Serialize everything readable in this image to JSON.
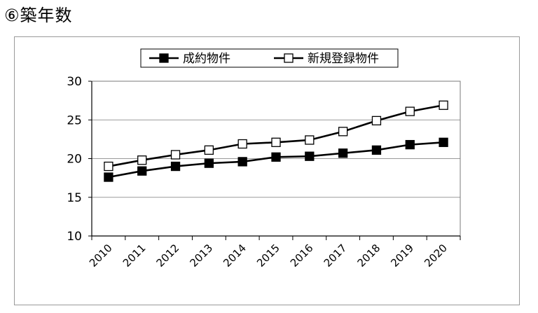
{
  "heading": "⑥築年数",
  "chart_data": {
    "type": "line",
    "x": [
      "2010",
      "2011",
      "2012",
      "2013",
      "2014",
      "2015",
      "2016",
      "2017",
      "2018",
      "2019",
      "2020"
    ],
    "series": [
      {
        "name": "成約物件",
        "marker": "filled-square",
        "color": "#000000",
        "values": [
          17.6,
          18.4,
          19.0,
          19.4,
          19.6,
          20.2,
          20.3,
          20.7,
          21.1,
          21.8,
          22.1
        ]
      },
      {
        "name": "新規登録物件",
        "marker": "open-square",
        "color": "#000000",
        "values": [
          19.0,
          19.8,
          20.5,
          21.1,
          21.9,
          22.1,
          22.4,
          23.5,
          24.9,
          26.1,
          26.9
        ]
      }
    ],
    "ylim": [
      10,
      30
    ],
    "yticks": [
      10,
      15,
      20,
      25,
      30
    ],
    "grid": true,
    "legend": "top-center"
  }
}
